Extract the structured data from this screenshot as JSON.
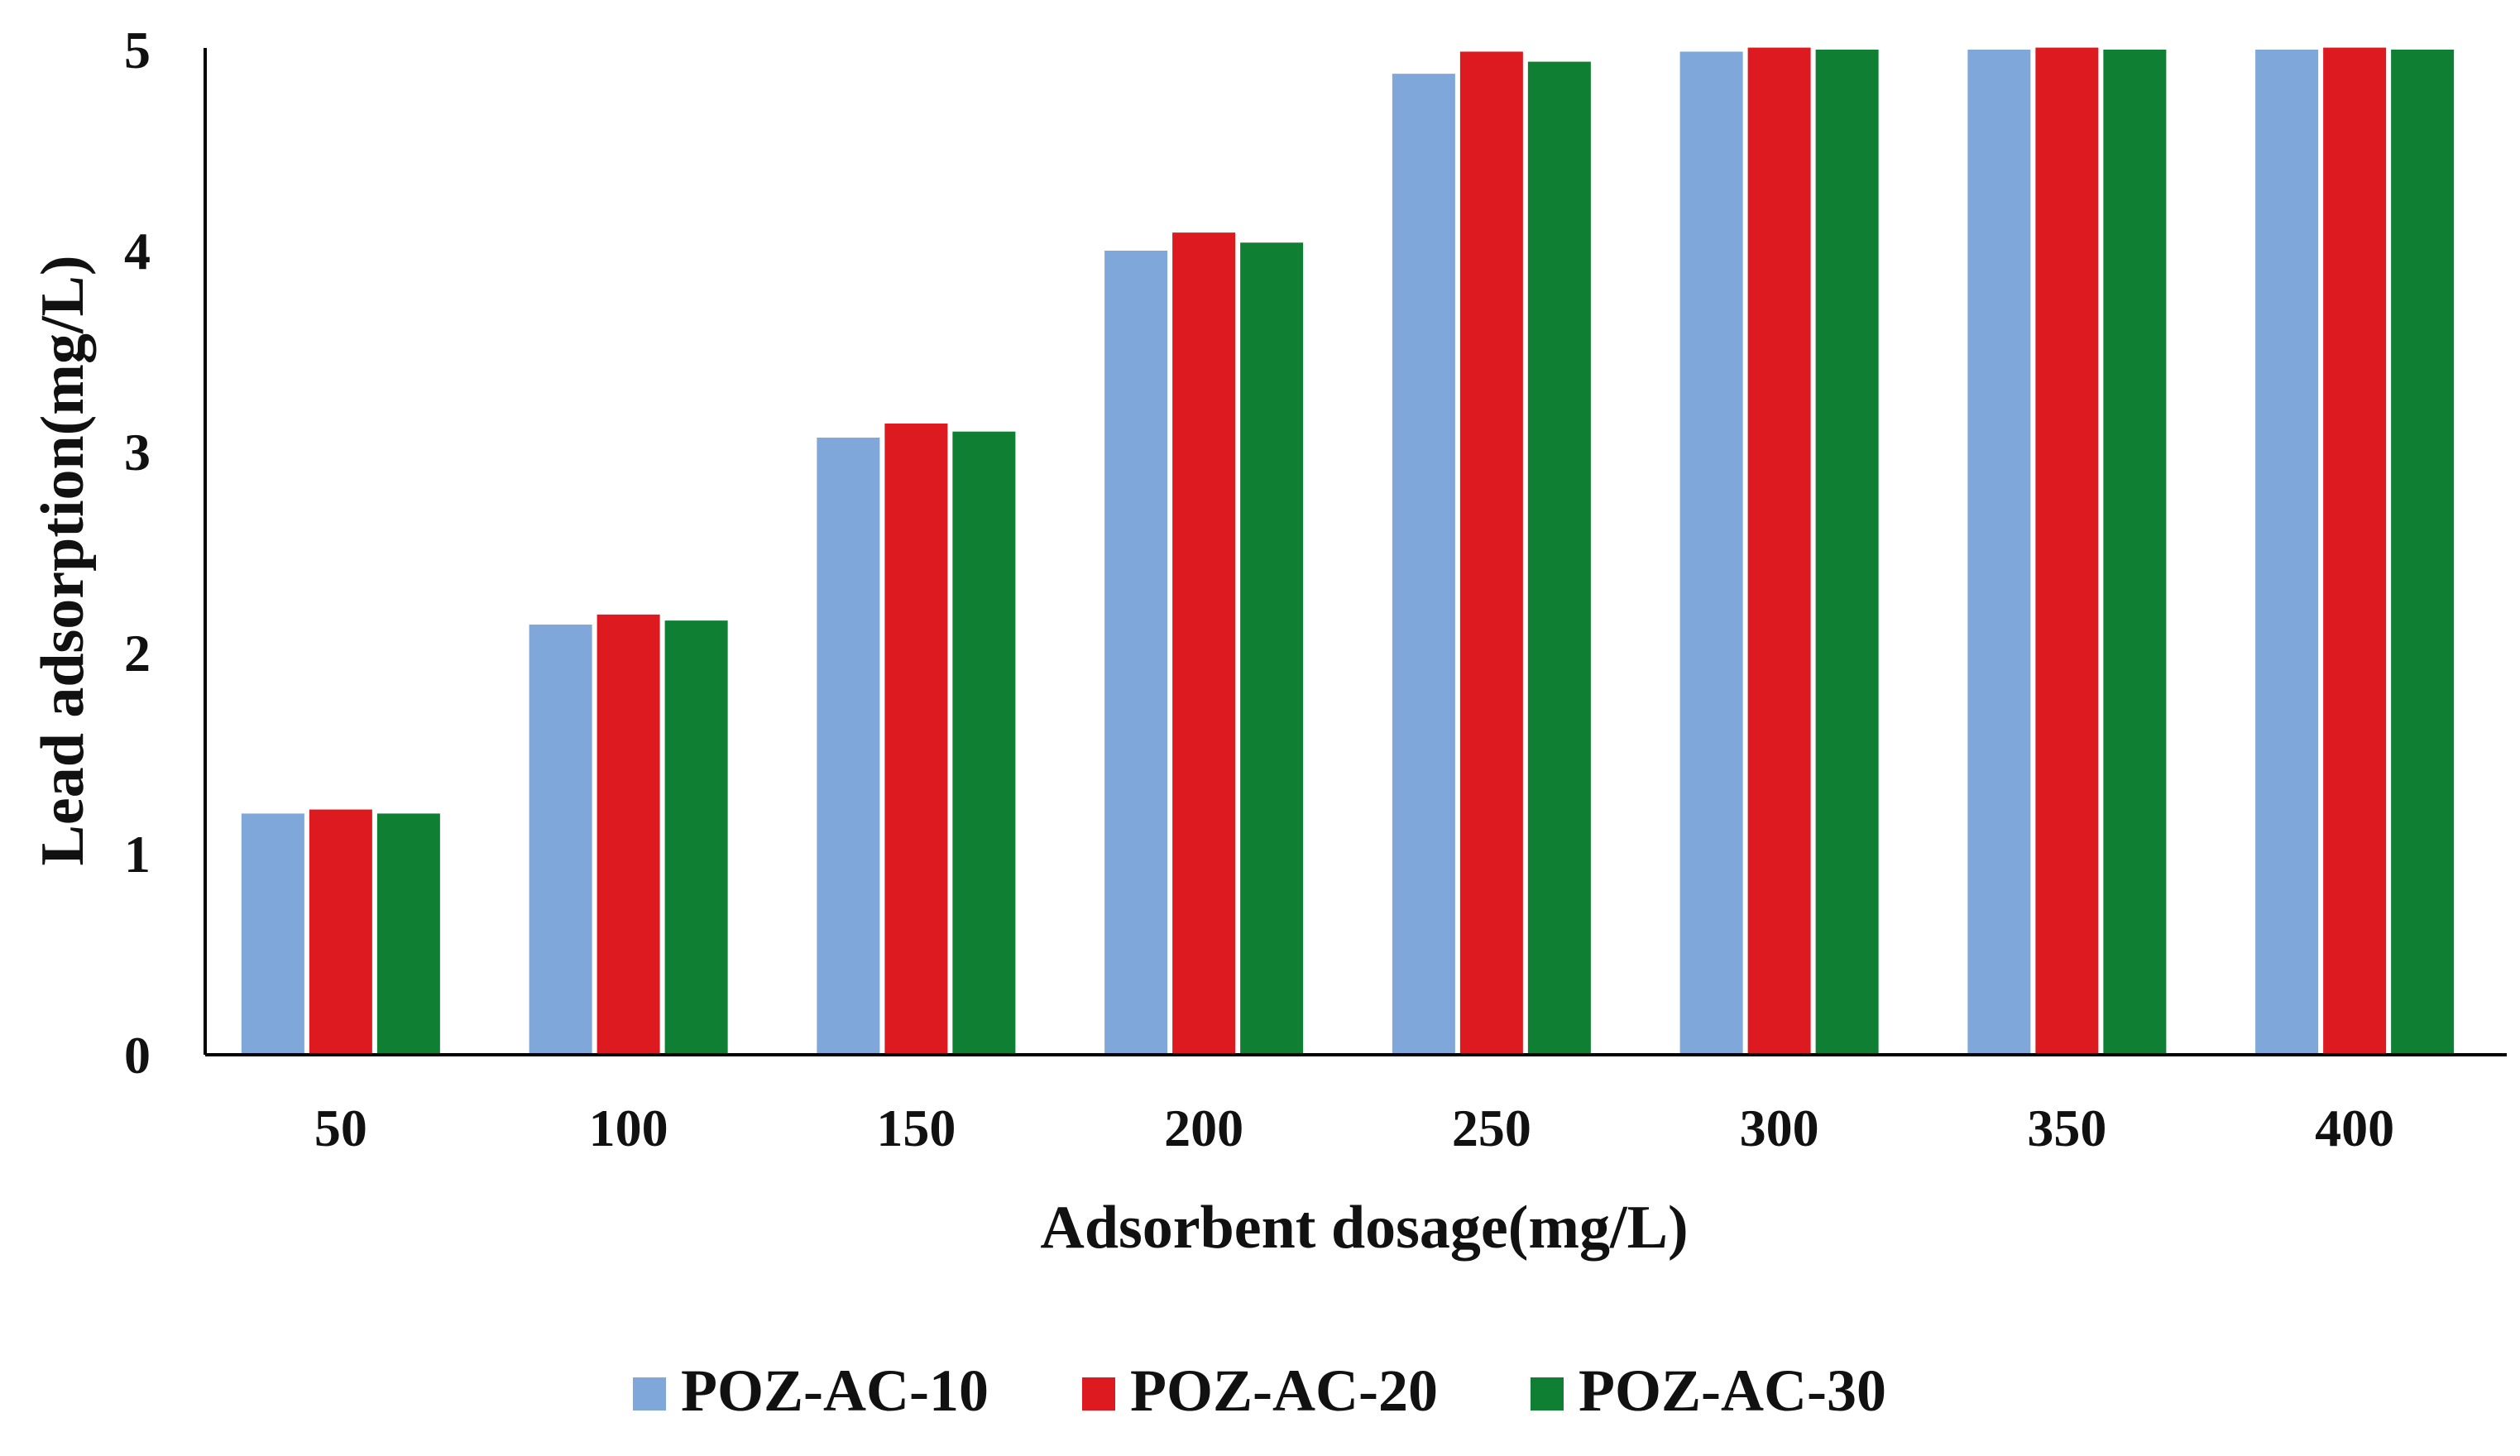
{
  "chart_data": {
    "type": "bar",
    "title": "",
    "xlabel": "Adsorbent dosage(mg/L)",
    "ylabel": "Lead adsorption(mg/L)",
    "ylim": [
      0,
      5
    ],
    "yticks": [
      "0",
      "1",
      "2",
      "3",
      "4",
      "5"
    ],
    "grid": false,
    "legend_position": "bottom",
    "categories": [
      "50",
      "100",
      "150",
      "200",
      "250",
      "300",
      "350",
      "400"
    ],
    "series": [
      {
        "name": "POZ-AC-10",
        "color": "#7FA7D9",
        "values": [
          1.2,
          2.14,
          3.07,
          4.0,
          4.88,
          4.99,
          5.0,
          5.0
        ]
      },
      {
        "name": "POZ-AC-20",
        "color": "#DE1A21",
        "values": [
          1.22,
          2.19,
          3.14,
          4.09,
          4.99,
          5.01,
          5.01,
          5.01
        ]
      },
      {
        "name": "POZ-AC-30",
        "color": "#0F7F33",
        "values": [
          1.2,
          2.16,
          3.1,
          4.04,
          4.94,
          5.0,
          5.0,
          5.0
        ]
      }
    ]
  }
}
